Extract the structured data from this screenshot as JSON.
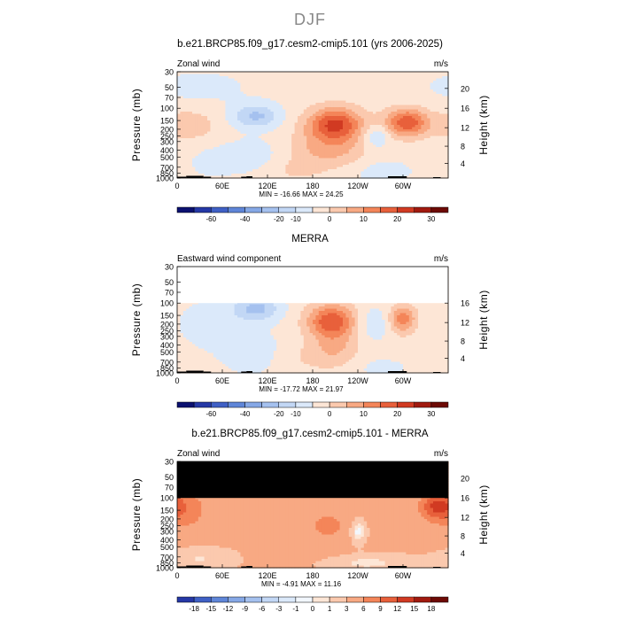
{
  "page_title": "DJF",
  "colors": {
    "pos": [
      "#fde6d6",
      "#fbc9ae",
      "#f8a983",
      "#f48559",
      "#e8603b",
      "#d13a22",
      "#a11a0f",
      "#6d0a05"
    ],
    "neg": [
      "#dbe9fa",
      "#c2d7f5",
      "#a5c1ef",
      "#86a8e6",
      "#5f86d8",
      "#3f60c5",
      "#2538a6",
      "#0b1170"
    ],
    "terrain": "#000000",
    "mask": "#000000"
  },
  "chart_data": [
    {
      "type": "heatmap",
      "title": "b.e21.BRCP85.f09_g17.cesm2-cmip5.101 (yrs 2006-2025)",
      "left_label": "Zonal wind",
      "units": "m/s",
      "ylabel": "Pressure (mb)",
      "y2label": "Height (km)",
      "y_ticks": [
        "30",
        "50",
        "70",
        "100",
        "150",
        "200",
        "250",
        "300",
        "400",
        "500",
        "700",
        "850",
        "1000"
      ],
      "y2_ticks": [
        "20",
        "16",
        "12",
        "8",
        "4"
      ],
      "x_ticks": [
        "0",
        "60E",
        "120E",
        "180",
        "120W",
        "60W"
      ],
      "stats": "MIN = -16.66   MAX =  24.25",
      "colorbar_labels": [
        "-60",
        "-40",
        "-20",
        "-10",
        "0",
        "10",
        "20",
        "30"
      ],
      "features": [
        {
          "lon": 45,
          "p": 600,
          "amp": -4,
          "s_lon": 20,
          "s_lz": 0.35
        },
        {
          "lon": 105,
          "p": 130,
          "amp": -13,
          "s_lon": 22,
          "s_lz": 0.28
        },
        {
          "lon": 95,
          "p": 500,
          "amp": -6,
          "s_lon": 25,
          "s_lz": 0.4
        },
        {
          "lon": 15,
          "p": 170,
          "amp": 7,
          "s_lon": 25,
          "s_lz": 0.35
        },
        {
          "lon": 210,
          "p": 170,
          "amp": 24,
          "s_lon": 25,
          "s_lz": 0.38
        },
        {
          "lon": 215,
          "p": 400,
          "amp": 8,
          "s_lon": 25,
          "s_lz": 0.45
        },
        {
          "lon": 305,
          "p": 160,
          "amp": 22,
          "s_lon": 20,
          "s_lz": 0.32
        },
        {
          "lon": 175,
          "p": 400,
          "amp": 5,
          "s_lon": 20,
          "s_lz": 0.5
        },
        {
          "lon": 265,
          "p": 250,
          "amp": -8,
          "s_lon": 12,
          "s_lz": 0.25
        },
        {
          "lon": 270,
          "p": 800,
          "amp": -4,
          "s_lon": 35,
          "s_lz": 0.3
        },
        {
          "lon": 140,
          "p": 800,
          "amp": 3,
          "s_lon": 30,
          "s_lz": 0.3
        },
        {
          "lon": 30,
          "p": 50,
          "amp": -3,
          "s_lon": 60,
          "s_lz": 0.5
        }
      ],
      "base": -3
    },
    {
      "type": "heatmap",
      "title": "MERRA",
      "left_label": "Eastward wind component",
      "units": "m/s",
      "ylabel": "Pressure (mb)",
      "y2label": "Height (km)",
      "y_ticks": [
        "30",
        "50",
        "70",
        "100",
        "150",
        "200",
        "250",
        "300",
        "400",
        "500",
        "700",
        "850",
        "1000"
      ],
      "y2_ticks": [
        "16",
        "12",
        "8",
        "4"
      ],
      "x_ticks": [
        "0",
        "60E",
        "120E",
        "180",
        "120W",
        "60W"
      ],
      "stats": "MIN = -17.72   MAX =  21.97",
      "colorbar_labels": [
        "-60",
        "-40",
        "-20",
        "-10",
        "0",
        "10",
        "20",
        "30"
      ],
      "masked_above_p": 100,
      "features": [
        {
          "lon": 105,
          "p": 120,
          "amp": -14,
          "s_lon": 22,
          "s_lz": 0.3
        },
        {
          "lon": 40,
          "p": 200,
          "amp": -6,
          "s_lon": 25,
          "s_lz": 0.5
        },
        {
          "lon": 100,
          "p": 500,
          "amp": -6,
          "s_lon": 30,
          "s_lz": 0.5
        },
        {
          "lon": 205,
          "p": 180,
          "amp": 22,
          "s_lon": 22,
          "s_lz": 0.38
        },
        {
          "lon": 210,
          "p": 450,
          "amp": 8,
          "s_lon": 22,
          "s_lz": 0.45
        },
        {
          "lon": 300,
          "p": 170,
          "amp": 16,
          "s_lon": 12,
          "s_lz": 0.32
        },
        {
          "lon": 260,
          "p": 200,
          "amp": -6,
          "s_lon": 15,
          "s_lz": 0.4
        },
        {
          "lon": 160,
          "p": 600,
          "amp": 3,
          "s_lon": 30,
          "s_lz": 0.4
        },
        {
          "lon": 270,
          "p": 850,
          "amp": -3,
          "s_lon": 35,
          "s_lz": 0.3
        }
      ],
      "base": -3
    },
    {
      "type": "heatmap",
      "title": "b.e21.BRCP85.f09_g17.cesm2-cmip5.101 - MERRA",
      "left_label": "Zonal wind",
      "units": "m/s",
      "ylabel": "Pressure (mb)",
      "y2label": "Height (km)",
      "y_ticks": [
        "30",
        "50",
        "70",
        "100",
        "150",
        "200",
        "250",
        "300",
        "400",
        "500",
        "700",
        "850",
        "1000"
      ],
      "y2_ticks": [
        "20",
        "16",
        "12",
        "8",
        "4"
      ],
      "x_ticks": [
        "0",
        "60E",
        "120E",
        "180",
        "120W",
        "60W"
      ],
      "stats": "MIN = -4.91   MAX =  11.16",
      "colorbar_labels": [
        "-18",
        "-15",
        "-12",
        "-9",
        "-6",
        "-3",
        "-1",
        "0",
        "1",
        "3",
        "6",
        "9",
        "12",
        "15",
        "18"
      ],
      "masked_above_p": 100,
      "features": [
        {
          "lon": 10,
          "p": 150,
          "amp": 4,
          "s_lon": 25,
          "s_lz": 0.5
        },
        {
          "lon": 345,
          "p": 130,
          "amp": 8,
          "s_lon": 15,
          "s_lz": 0.3
        },
        {
          "lon": 240,
          "p": 300,
          "amp": -5,
          "s_lon": 8,
          "s_lz": 0.3
        },
        {
          "lon": 200,
          "p": 250,
          "amp": 3,
          "s_lon": 30,
          "s_lz": 0.6
        },
        {
          "lon": 30,
          "p": 750,
          "amp": -2.5,
          "s_lon": 30,
          "s_lz": 0.25
        },
        {
          "lon": 250,
          "p": 850,
          "amp": -3,
          "s_lon": 40,
          "s_lz": 0.2
        }
      ],
      "base": 3.4
    }
  ]
}
